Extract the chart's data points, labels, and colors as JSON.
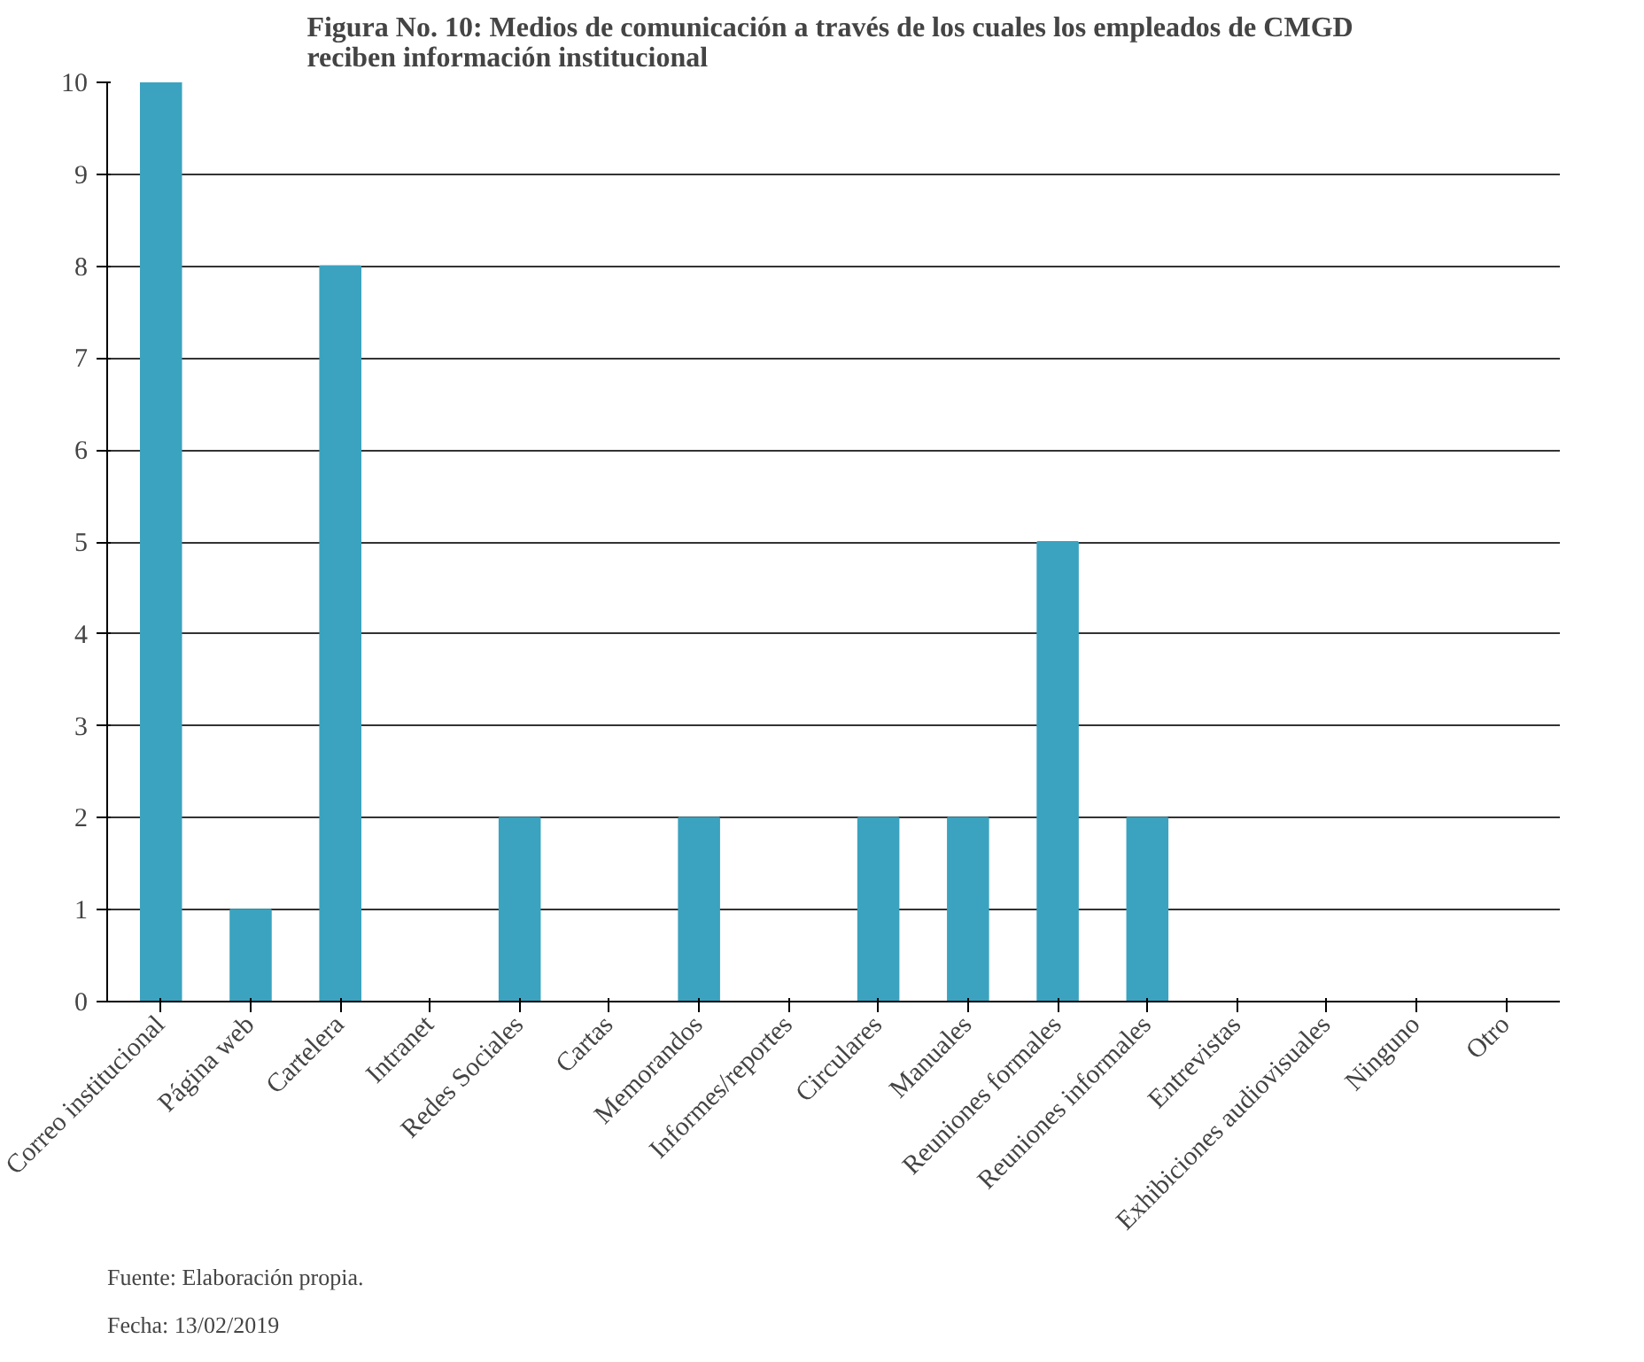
{
  "chart_data": {
    "type": "bar",
    "title": "Figura No. 10:  Medios de comunicación a través de los cuales los empleados de CMGD\nreciben información institucional",
    "categories": [
      "Correo institucional",
      "Página web",
      "Cartelera",
      "Intranet",
      "Redes Sociales",
      "Cartas",
      "Memorandos",
      "Informes/reportes",
      "Circulares",
      "Manuales",
      "Reuniones formales",
      "Reuniones informales",
      "Entrevistas",
      "Exhibiciones audiovisuales",
      "Ninguno",
      "Otro"
    ],
    "values": [
      10,
      1,
      8,
      0,
      2,
      0,
      2,
      0,
      2,
      2,
      5,
      2,
      0,
      0,
      0,
      0
    ],
    "color": "#3ba3bf",
    "ylim": [
      0,
      10
    ],
    "yticks": [
      0,
      1,
      2,
      3,
      4,
      5,
      6,
      7,
      8,
      9,
      10
    ],
    "grid": "y",
    "annotations": [
      "Fuente:  Elaboración propia.",
      "Fecha: 13/02/2019"
    ]
  }
}
